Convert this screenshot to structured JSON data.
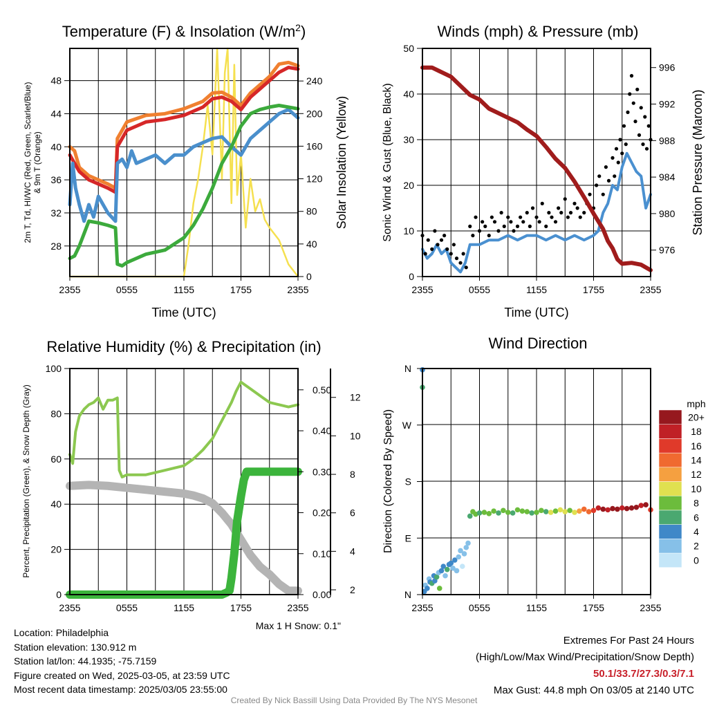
{
  "chart_data": [
    {
      "type": "line",
      "title": "Temperature (F) & Insolation (W/m2)",
      "xlabel": "Time (UTC)",
      "ylabel": "2m T, Td, HI/WC (Red, Green, Scarlet/Blue) & 9m T (Orange)",
      "y2label": "Solar Insolation (Yellow)",
      "xticks": [
        "2355",
        "0555",
        "1155",
        "1755",
        "2355"
      ],
      "ylim": [
        24.3,
        51.9
      ],
      "yticks": [
        28,
        32,
        36,
        40,
        44,
        48
      ],
      "y2lim": [
        0,
        280
      ],
      "y2ticks": [
        0,
        40,
        80,
        120,
        160,
        200,
        240
      ],
      "series": [
        {
          "name": "Solar Insolation",
          "axis": "y2",
          "color": "#f5e050",
          "x": [
            0,
            12,
            12.5,
            13,
            13.5,
            14,
            14.5,
            15,
            15.5,
            16,
            16.3,
            16.6,
            17,
            17.3,
            17.6,
            18,
            18.5,
            19,
            19.5,
            20,
            20.5,
            21,
            22,
            23,
            24
          ],
          "y": [
            0,
            0,
            40,
            90,
            120,
            160,
            210,
            150,
            280,
            120,
            250,
            280,
            90,
            260,
            100,
            150,
            60,
            120,
            80,
            95,
            70,
            60,
            45,
            15,
            0
          ]
        },
        {
          "name": "9m T",
          "axis": "y",
          "color": "#f08030",
          "x": [
            0,
            0.5,
            1,
            2,
            3,
            4,
            4.8,
            5,
            6,
            8,
            10,
            12,
            14,
            15,
            16,
            17,
            18,
            19,
            20,
            21,
            22,
            23,
            24
          ],
          "y": [
            40,
            39.5,
            37.5,
            36.5,
            36,
            35.5,
            35,
            41,
            43,
            43.8,
            44,
            44.6,
            45.5,
            46.5,
            46.6,
            46,
            45,
            46.5,
            47.5,
            48.5,
            50,
            50.2,
            49.8
          ]
        },
        {
          "name": "2m T",
          "axis": "y",
          "color": "#d62728",
          "x": [
            0,
            0.5,
            1,
            2,
            3,
            4,
            4.8,
            5,
            6,
            8,
            10,
            12,
            14,
            15,
            16,
            17,
            18,
            19,
            20,
            21,
            22,
            23,
            24
          ],
          "y": [
            39,
            38,
            37,
            36,
            35.5,
            35,
            34.5,
            40,
            42,
            43,
            43.3,
            43.8,
            44.8,
            45.8,
            46,
            45.5,
            44.5,
            46,
            47,
            48,
            49,
            49.6,
            49.4
          ]
        },
        {
          "name": "HI/WC",
          "axis": "y",
          "color": "#4a8fcc",
          "x": [
            0,
            0.3,
            0.6,
            1,
            1.5,
            2,
            2.5,
            3,
            3.5,
            4,
            4.8,
            5,
            5.5,
            6,
            6.5,
            7,
            8,
            9,
            10,
            11,
            12,
            13,
            14,
            15,
            16,
            17,
            18,
            19,
            20,
            21,
            22,
            23,
            24
          ],
          "y": [
            33,
            38,
            35,
            33,
            31,
            33,
            31.5,
            34,
            33,
            32,
            31,
            38,
            38.5,
            37.5,
            39.5,
            38,
            38.5,
            39,
            38,
            39,
            39,
            40,
            40.5,
            41,
            41.2,
            40,
            39,
            41,
            42,
            43,
            44,
            44.5,
            43.5
          ]
        },
        {
          "name": "Td",
          "axis": "y",
          "color": "#3caa3c",
          "x": [
            0,
            0.5,
            1,
            1.5,
            2,
            3,
            4,
            4.8,
            5,
            5.5,
            6,
            8,
            10,
            12,
            13,
            14,
            15,
            16,
            17,
            18,
            19,
            20,
            21,
            22,
            24
          ],
          "y": [
            26.5,
            26.8,
            28,
            29.5,
            31,
            30.8,
            30.5,
            30.2,
            25.8,
            25.6,
            26,
            27,
            27.5,
            29,
            30.5,
            32.5,
            35,
            38,
            40,
            42.5,
            44,
            44.5,
            44.8,
            45,
            44.6
          ]
        }
      ]
    },
    {
      "type": "line",
      "title": "Winds (mph) & Pressure (mb)",
      "xlabel": "Time (UTC)",
      "ylabel": "Sonic Wind & Gust (Blue, Black)",
      "y2label": "Station Pressure (Maroon)",
      "xticks": [
        "2355",
        "0555",
        "1155",
        "1755",
        "2355"
      ],
      "ylim": [
        0,
        50
      ],
      "yticks": [
        0,
        10,
        20,
        30,
        40,
        50
      ],
      "y2lim": [
        973.1,
        998.1
      ],
      "y2ticks": [
        976,
        980,
        984,
        988,
        992,
        996
      ],
      "series": [
        {
          "name": "Sonic Wind",
          "axis": "y",
          "color": "#4a90d0",
          "x": [
            0,
            0.5,
            1,
            1.5,
            2,
            2.5,
            3,
            3.5,
            4,
            4.5,
            5,
            6,
            7,
            8,
            9,
            10,
            11,
            12,
            13,
            14,
            15,
            16,
            17,
            18,
            18.5,
            19,
            19.5,
            20,
            20.5,
            21,
            21.5,
            22,
            22.5,
            23,
            23.5,
            24
          ],
          "y": [
            6,
            4,
            5,
            7,
            5,
            6,
            3,
            2,
            1,
            3,
            7,
            7,
            8,
            8,
            9,
            8,
            9,
            9,
            8,
            9,
            8,
            9,
            8,
            9,
            10,
            14,
            16,
            20,
            19,
            24,
            27,
            25,
            23,
            22,
            15,
            18
          ]
        },
        {
          "name": "Gust",
          "axis": "y",
          "type": "scatter",
          "color": "#000000",
          "x": [
            0,
            0.3,
            0.6,
            1,
            1.3,
            1.6,
            2,
            2.3,
            2.6,
            3,
            3.3,
            3.6,
            4,
            4.3,
            4.6,
            5,
            5.3,
            5.6,
            6,
            6.3,
            6.6,
            7,
            7.3,
            7.6,
            8,
            8.3,
            8.6,
            9,
            9.3,
            9.6,
            10,
            10.3,
            10.6,
            11,
            11.3,
            11.6,
            12,
            12.3,
            12.6,
            13,
            13.3,
            13.6,
            14,
            14.3,
            14.6,
            15,
            15.3,
            15.6,
            16,
            16.3,
            16.6,
            17,
            17.3,
            17.6,
            18,
            18.3,
            18.6,
            19,
            19.3,
            19.6,
            20,
            20.2,
            20.4,
            20.6,
            20.8,
            21,
            21.2,
            21.4,
            21.6,
            21.8,
            22,
            22.2,
            22.4,
            22.6,
            22.8,
            23,
            23.2,
            23.4,
            23.6,
            23.8,
            24
          ],
          "y": [
            9,
            5,
            8,
            6,
            10,
            7,
            8,
            9,
            6,
            5,
            7,
            4,
            3,
            5,
            2,
            11,
            9,
            13,
            10,
            12,
            11,
            9,
            13,
            12,
            10,
            14,
            11,
            13,
            12,
            10,
            11,
            13,
            12,
            14,
            11,
            15,
            13,
            12,
            16,
            11,
            14,
            13,
            12,
            15,
            14,
            17,
            13,
            14,
            16,
            15,
            13,
            14,
            16,
            18,
            15,
            20,
            22,
            18,
            24,
            21,
            26,
            22,
            28,
            25,
            30,
            27,
            33,
            29,
            36,
            40,
            44,
            38,
            34,
            41,
            31,
            37,
            29,
            35,
            28,
            33,
            30
          ]
        },
        {
          "name": "Station Pressure",
          "axis": "y2",
          "color": "#a01c1c",
          "x": [
            0,
            1,
            2,
            3,
            4,
            5,
            6,
            7,
            8,
            9,
            10,
            11,
            12,
            13,
            14,
            15,
            16,
            17,
            18,
            19,
            19.5,
            20,
            20.5,
            21,
            22,
            23,
            24
          ],
          "y": [
            996,
            996,
            995.5,
            995,
            994,
            993,
            992.5,
            991.5,
            991,
            990.5,
            990,
            989.2,
            988.5,
            987.3,
            986,
            985,
            983.5,
            981.8,
            980,
            978.3,
            977,
            976.2,
            975,
            974.5,
            974.6,
            974.4,
            973.8
          ]
        }
      ]
    },
    {
      "type": "line",
      "title": "Relative Humidity (%) & Precipitation (in)",
      "xlabel": "",
      "ylabel": "Percent, Precipitation (Green), & Snow Depth (Gray)",
      "xticks": [
        "2355",
        "0555",
        "1155",
        "1755",
        "2355"
      ],
      "ylim": [
        0,
        100
      ],
      "yticks": [
        0,
        20,
        40,
        60,
        80,
        100
      ],
      "y2lim": [
        0,
        0.552
      ],
      "y2ticks": [
        "0.00",
        "0.10",
        "0.20",
        "0.30",
        "0.40",
        "0.50"
      ],
      "y3lim": [
        1.75,
        13.5
      ],
      "y3ticks": [
        2,
        4,
        6,
        8,
        10,
        12
      ],
      "annotation": "Max 1 H Snow: 0.1\"",
      "series": [
        {
          "name": "Snow Depth",
          "axis": "y3",
          "color": "#b4b4b4",
          "x": [
            0,
            2,
            4,
            6,
            8,
            10,
            12,
            13,
            14,
            15,
            16,
            17,
            18,
            19,
            20,
            21,
            22,
            23,
            24
          ],
          "y": [
            7.4,
            7.45,
            7.4,
            7.3,
            7.2,
            7.1,
            7.0,
            6.9,
            6.75,
            6.5,
            6.0,
            5.4,
            4.6,
            3.8,
            3.2,
            2.8,
            2.3,
            1.95,
            1.95
          ]
        },
        {
          "name": "Precipitation",
          "axis": "y2",
          "color": "#3cb43c",
          "x": [
            0,
            16,
            16.5,
            16.8,
            17,
            17.3,
            17.6,
            18,
            18.3,
            18.6,
            19,
            24
          ],
          "y": [
            0,
            0,
            0.005,
            0.01,
            0.04,
            0.1,
            0.18,
            0.24,
            0.28,
            0.3,
            0.3,
            0.3
          ]
        },
        {
          "name": "Relative Humidity",
          "axis": "y",
          "color": "#8cc850",
          "x": [
            0,
            0.3,
            0.6,
            1,
            1.5,
            2,
            2.5,
            3,
            3.5,
            4,
            4.5,
            5,
            5.2,
            5.5,
            6,
            8,
            10,
            12,
            13,
            14,
            15,
            16,
            17,
            17.5,
            18,
            19,
            20,
            21,
            22,
            23,
            24
          ],
          "y": [
            62,
            58,
            72,
            79,
            82,
            84,
            85,
            87,
            82,
            86,
            86,
            87,
            55,
            52,
            53,
            53,
            55,
            57,
            60,
            64,
            69,
            77,
            85,
            90,
            94,
            91,
            88,
            85,
            84,
            83,
            84
          ]
        }
      ]
    },
    {
      "type": "scatter",
      "title": "Wind Direction",
      "ylabel": "Direction (Colored By Speed)",
      "xticks": [
        "2355",
        "0555",
        "1155",
        "1755",
        "2355"
      ],
      "ylim": [
        0,
        360
      ],
      "yticks": [
        "N",
        "E",
        "S",
        "W",
        "N"
      ],
      "colorbar": {
        "label": "mph",
        "ticks": [
          "0",
          "2",
          "4",
          "6",
          "8",
          "10",
          "12",
          "14",
          "16",
          "18",
          "20+"
        ],
        "colors": [
          "#c4e6f8",
          "#86c0e8",
          "#3f88c8",
          "#4aa870",
          "#6cbc3c",
          "#e0e050",
          "#f5a040",
          "#f06a30",
          "#e03a2a",
          "#c02026",
          "#96181e"
        ]
      },
      "points": {
        "x": [
          0,
          0,
          0.2,
          0.3,
          0.5,
          0.7,
          0.8,
          1,
          1.2,
          1.3,
          1.5,
          1.7,
          1.8,
          2,
          2.2,
          2.4,
          2.6,
          2.8,
          3,
          3.2,
          3.4,
          3.6,
          3.8,
          4,
          4.2,
          4.4,
          4.6,
          4.8,
          5,
          5.3,
          5.6,
          6,
          6.5,
          7,
          7.5,
          8,
          8.5,
          9,
          9.5,
          10,
          10.5,
          11,
          11.5,
          12,
          12.5,
          13,
          13.5,
          14,
          14.5,
          15,
          15.5,
          16,
          16.5,
          17,
          17.5,
          18,
          18.5,
          19,
          19.5,
          20,
          20.5,
          21,
          21.5,
          22,
          22.5,
          23,
          23.5,
          24
        ],
        "y": [
          358,
          330,
          5,
          15,
          10,
          25,
          20,
          18,
          30,
          22,
          28,
          35,
          10,
          38,
          45,
          30,
          40,
          48,
          50,
          42,
          55,
          38,
          60,
          70,
          45,
          65,
          75,
          82,
          125,
          132,
          128,
          130,
          131,
          129,
          133,
          130,
          134,
          131,
          130,
          135,
          133,
          132,
          130,
          131,
          134,
          132,
          131,
          133,
          135,
          132,
          134,
          131,
          133,
          136,
          132,
          134,
          138,
          136,
          135,
          137,
          136,
          138,
          137,
          138,
          139,
          142,
          143,
          135
        ],
        "speed": [
          3,
          6,
          3,
          2,
          4,
          1,
          3,
          5,
          4,
          3,
          6,
          1,
          7,
          3,
          4,
          2,
          5,
          3,
          4,
          1,
          3,
          2,
          1,
          2,
          0,
          1,
          2,
          1,
          6,
          7,
          7,
          6,
          8,
          7,
          7,
          6,
          8,
          7,
          6,
          7,
          8,
          7,
          6,
          8,
          7,
          6,
          9,
          8,
          10,
          9,
          8,
          10,
          12,
          14,
          13,
          16,
          18,
          19,
          18,
          20,
          19,
          18,
          21,
          20,
          19,
          18,
          20,
          16
        ]
      }
    }
  ],
  "info": {
    "location": "Location: Philadelphia",
    "elevation": "Station elevation: 130.912 m",
    "latlon": "Station lat/lon: 44.1935; -75.7159",
    "created": "Figure created on Wed, 2025-03-05, at 23:59 UTC",
    "recent": "Most recent data timestamp: 2025/03/05 23:55:00"
  },
  "extremes": {
    "title": "Extremes For Past 24 Hours",
    "subtitle": "(High/Low/Max Wind/Precipitation/Snow Depth)",
    "values": "50.1/33.7/27.3/0.3/7.1",
    "gust": "Max Gust: 44.8 mph On 03/05 at 2140 UTC"
  },
  "credit": "Created By Nick Bassill Using Data Provided By The NYS Mesonet"
}
